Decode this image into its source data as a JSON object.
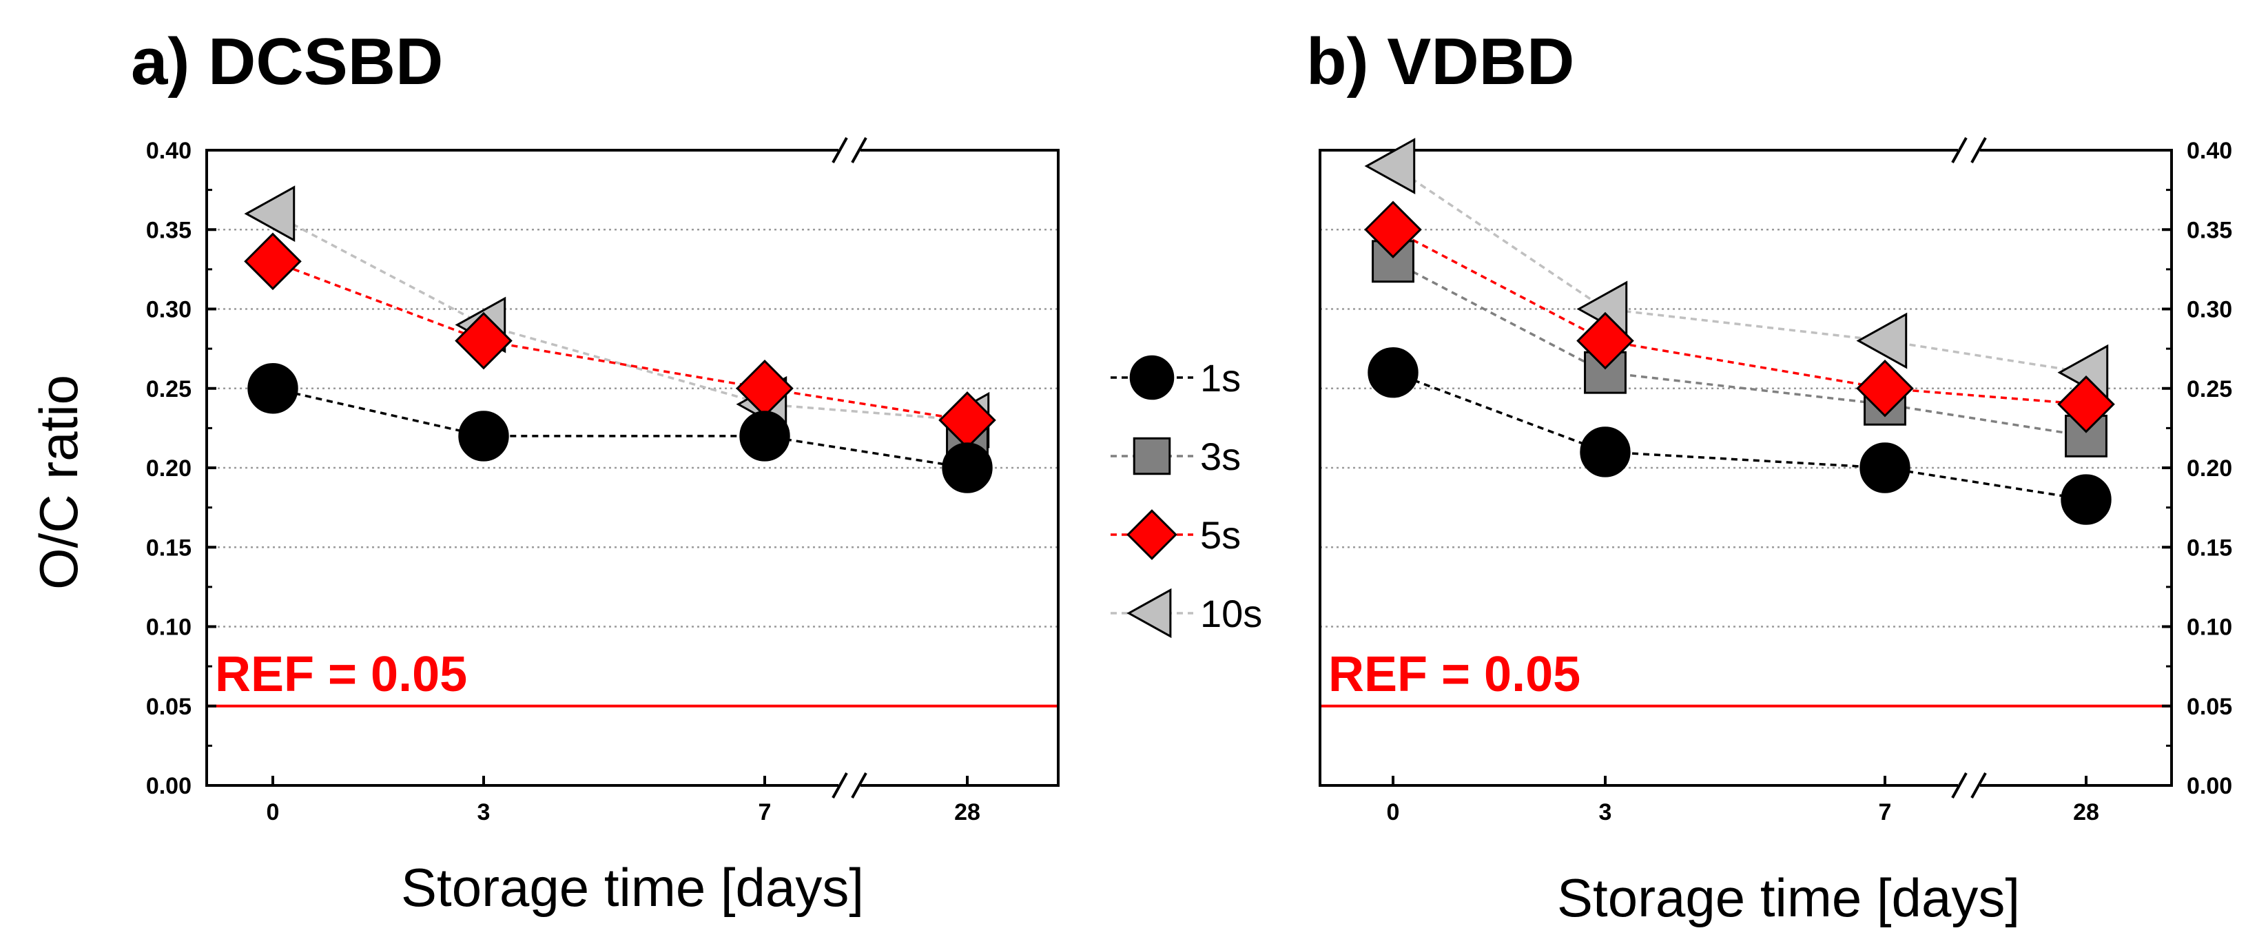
{
  "colors": {
    "series_1s": "#000000",
    "series_3s": "#808080",
    "series_5s": "#ff0000",
    "series_10s": "#c0c0c0",
    "ref_line": "#ff0000",
    "grid": "#9a9a9a"
  },
  "legend": {
    "items": [
      {
        "label": "1s",
        "marker": "circle"
      },
      {
        "label": "3s",
        "marker": "square"
      },
      {
        "label": "5s",
        "marker": "diamond"
      },
      {
        "label": "10s",
        "marker": "triangle-left"
      }
    ]
  },
  "chart_data": [
    {
      "type": "line",
      "title": "a) DCSBD",
      "xlabel": "Storage time [days]",
      "ylabel": "O/C ratio",
      "categories": [
        "0",
        "3",
        "7",
        "28"
      ],
      "axis_break_between": [
        "7",
        "28"
      ],
      "ylim": [
        0.0,
        0.4
      ],
      "yticks": [
        "0.00",
        "0.05",
        "0.10",
        "0.15",
        "0.20",
        "0.25",
        "0.30",
        "0.35",
        "0.40"
      ],
      "y_axis_side": "left",
      "grid": true,
      "reference": {
        "label": "REF = 0.05",
        "value": 0.05
      },
      "series": [
        {
          "name": "1s",
          "values": [
            0.25,
            0.22,
            0.22,
            0.2
          ]
        },
        {
          "name": "3s",
          "values": [
            null,
            null,
            null,
            0.22
          ]
        },
        {
          "name": "5s",
          "values": [
            0.33,
            0.28,
            0.25,
            0.23
          ]
        },
        {
          "name": "10s",
          "values": [
            0.36,
            0.29,
            0.24,
            0.23
          ]
        }
      ]
    },
    {
      "type": "line",
      "title": "b) VDBD",
      "xlabel": "Storage time [days]",
      "ylabel": "",
      "categories": [
        "0",
        "3",
        "7",
        "28"
      ],
      "axis_break_between": [
        "7",
        "28"
      ],
      "ylim": [
        0.0,
        0.4
      ],
      "yticks": [
        "0.00",
        "0.05",
        "0.10",
        "0.15",
        "0.20",
        "0.25",
        "0.30",
        "0.35",
        "0.40"
      ],
      "y_axis_side": "right",
      "grid": true,
      "reference": {
        "label": "REF = 0.05",
        "value": 0.05
      },
      "series": [
        {
          "name": "1s",
          "values": [
            0.26,
            0.21,
            0.2,
            0.18
          ]
        },
        {
          "name": "3s",
          "values": [
            0.33,
            0.26,
            0.24,
            0.22
          ]
        },
        {
          "name": "5s",
          "values": [
            0.35,
            0.28,
            0.25,
            0.24
          ]
        },
        {
          "name": "10s",
          "values": [
            0.39,
            0.3,
            0.28,
            0.26
          ]
        }
      ]
    }
  ]
}
